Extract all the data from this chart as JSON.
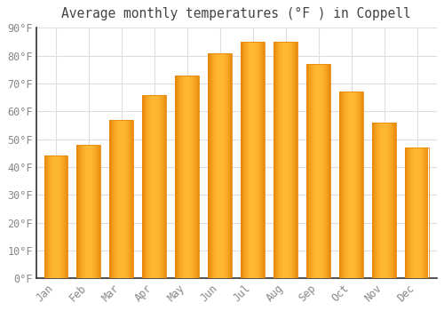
{
  "title": "Average monthly temperatures (°F ) in Coppell",
  "months": [
    "Jan",
    "Feb",
    "Mar",
    "Apr",
    "May",
    "Jun",
    "Jul",
    "Aug",
    "Sep",
    "Oct",
    "Nov",
    "Dec"
  ],
  "values": [
    44,
    48,
    57,
    66,
    73,
    81,
    85,
    85,
    77,
    67,
    56,
    47
  ],
  "bar_color_center": "#FFB732",
  "bar_color_edge": "#E8880A",
  "background_color": "#FFFFFF",
  "plot_bg_color": "#FFFFFF",
  "grid_color": "#DDDDDD",
  "text_color": "#888888",
  "axis_color": "#333333",
  "ylim": [
    0,
    90
  ],
  "yticks": [
    0,
    10,
    20,
    30,
    40,
    50,
    60,
    70,
    80,
    90
  ],
  "title_fontsize": 10.5,
  "tick_fontsize": 8.5,
  "bar_width": 0.72
}
